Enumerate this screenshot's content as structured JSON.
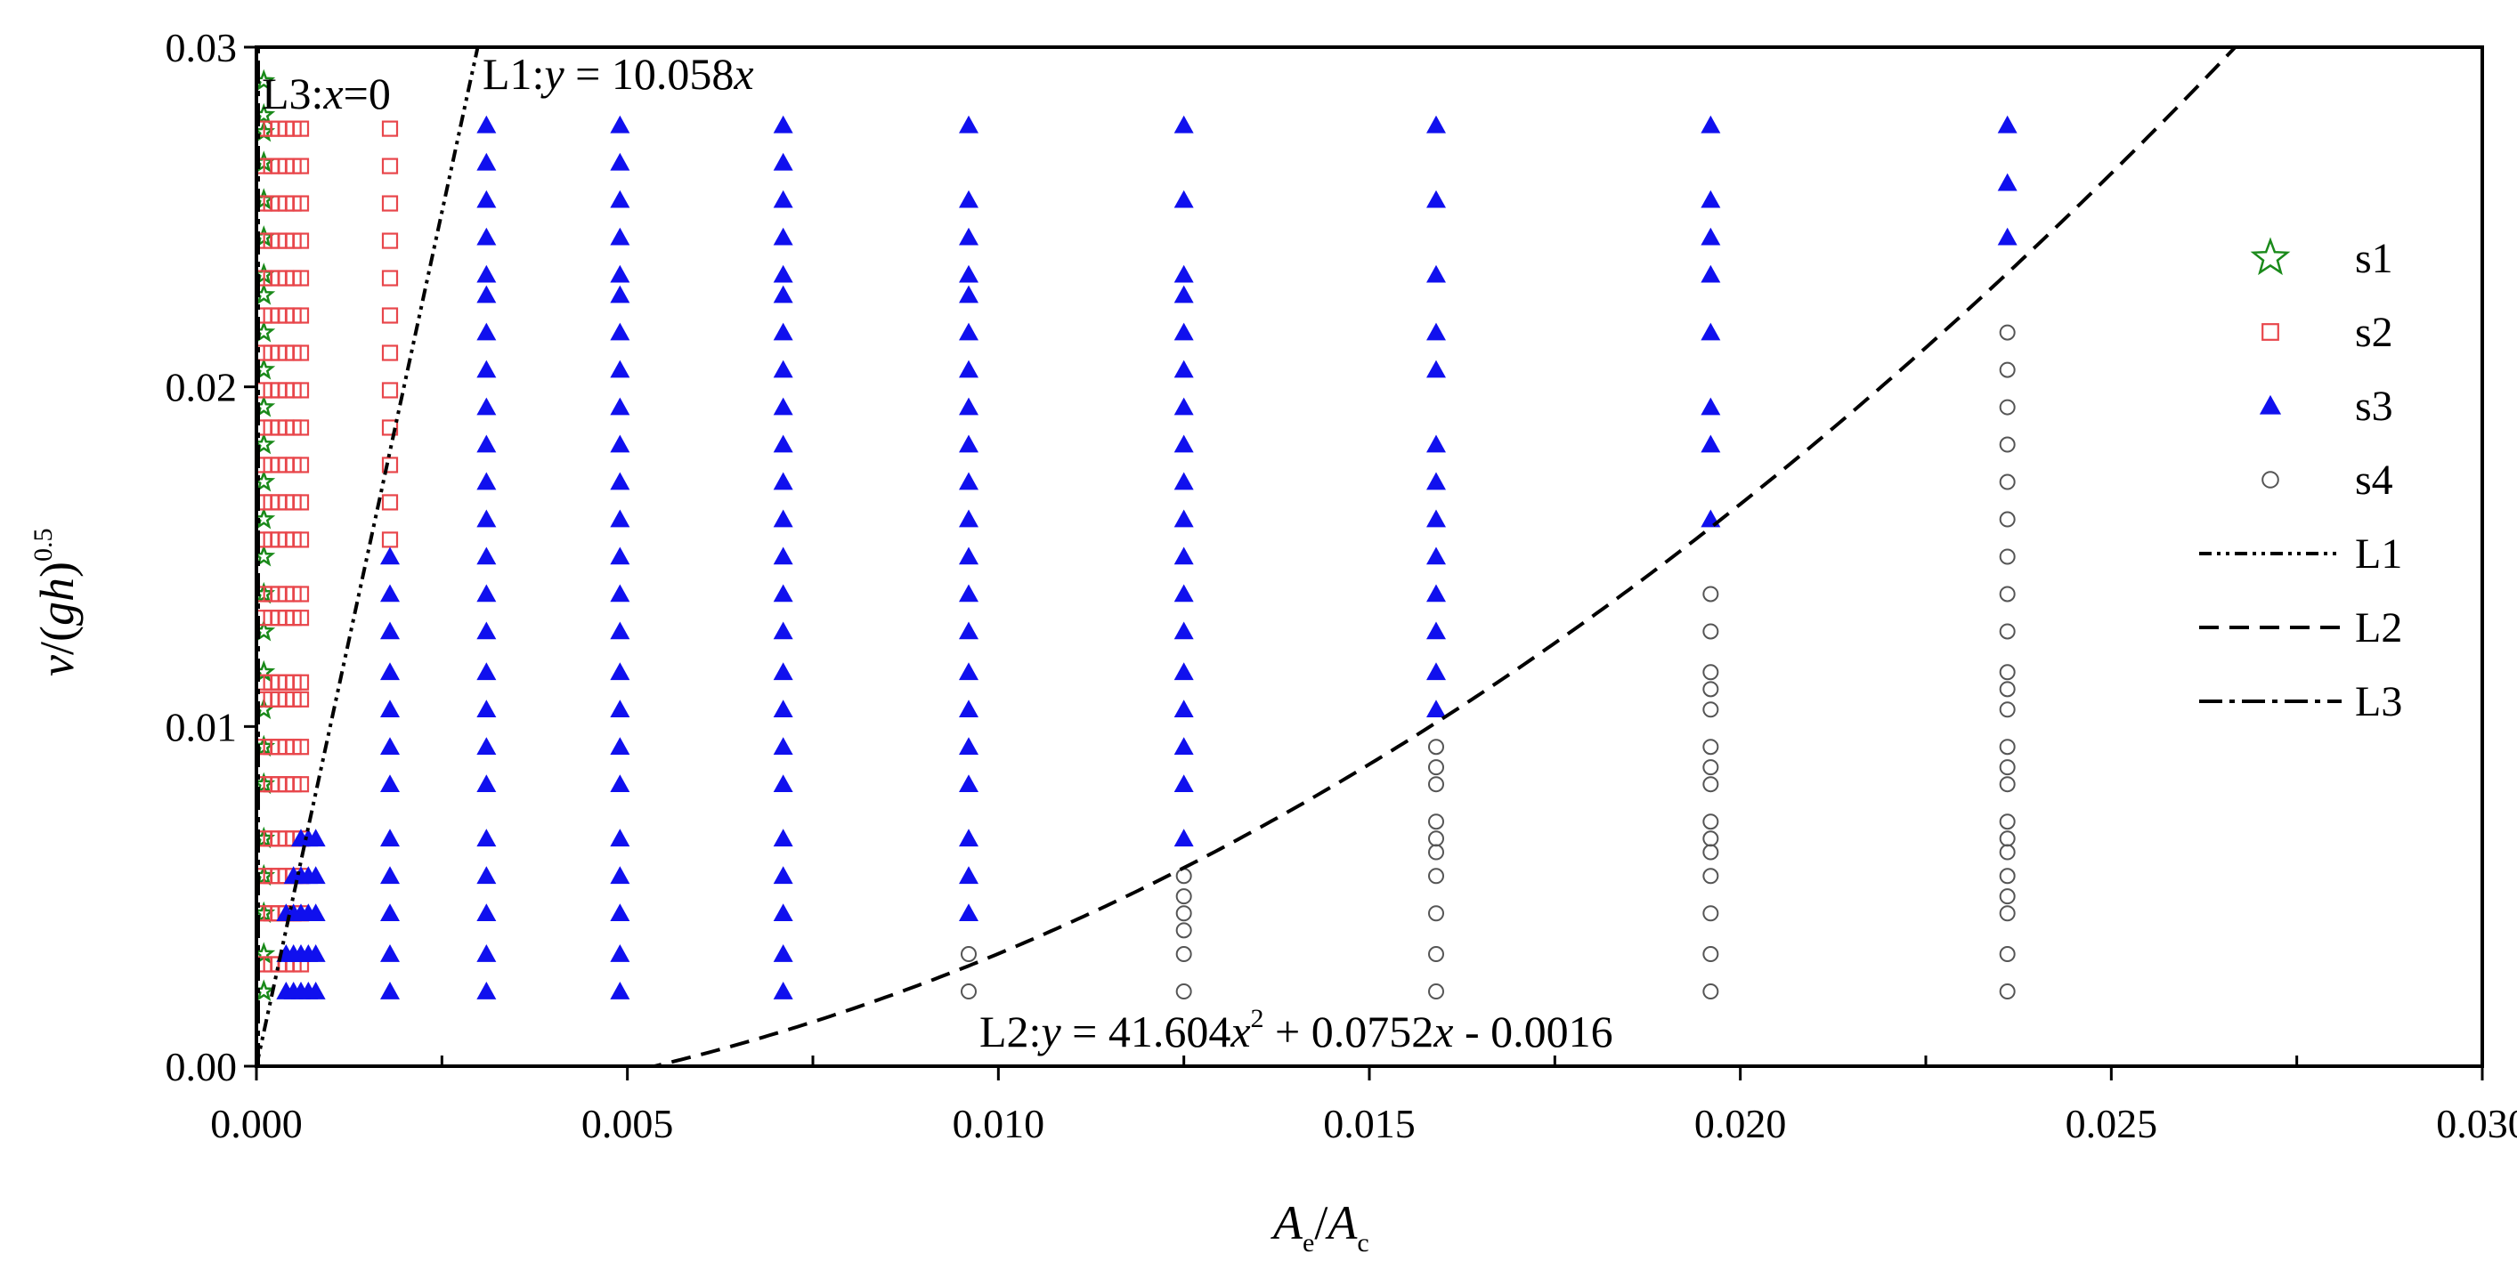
{
  "chart_data": {
    "type": "scatter",
    "title": "",
    "xlabel": "A_e/A_c",
    "ylabel": "v/(gh)^0.5",
    "xlim": [
      0.0,
      0.03
    ],
    "ylim": [
      0.0,
      0.03
    ],
    "x_ticks": [
      "0.000",
      "0.005",
      "0.010",
      "0.015",
      "0.020",
      "0.025",
      "0.030"
    ],
    "y_ticks": [
      "0.00",
      "0.01",
      "0.02",
      "0.03"
    ],
    "legend_position": "right",
    "series": [
      {
        "name": "s1",
        "marker": "star",
        "color": "#1a8a1a",
        "x": [
          0.0001,
          0.0001,
          0.0001,
          0.0001,
          0.0001,
          0.0001,
          0.0001,
          0.0001,
          0.0001,
          0.0001,
          0.0001,
          0.0001,
          0.0001,
          0.0001,
          0.0001,
          0.0001,
          0.0001,
          0.0001,
          0.0001,
          0.0001,
          0.0001,
          0.0001,
          0.0001,
          0.0001,
          0.0001,
          0.0001
        ],
        "y": [
          0.0022,
          0.0033,
          0.0045,
          0.0056,
          0.0067,
          0.0083,
          0.0094,
          0.0105,
          0.0116,
          0.0128,
          0.0139,
          0.015,
          0.0161,
          0.0172,
          0.0183,
          0.0194,
          0.0205,
          0.0216,
          0.0227,
          0.0233,
          0.0244,
          0.0255,
          0.0266,
          0.0275,
          0.028,
          0.029
        ]
      },
      {
        "name": "s2",
        "marker": "square",
        "color": "#e8464b",
        "x": [
          0.0001,
          0.0002,
          0.0003,
          0.0004,
          0.0005,
          0.0006,
          0.0001,
          0.0002,
          0.0003,
          0.0004,
          0.0005,
          0.0006,
          0.0001,
          0.0002,
          0.0003,
          0.0004,
          0.0005,
          0.0006,
          0.0001,
          0.0002,
          0.0003,
          0.0004,
          0.0005,
          0.0006,
          0.0001,
          0.0002,
          0.0003,
          0.0004,
          0.0005,
          0.0006,
          0.0001,
          0.0002,
          0.0003,
          0.0004,
          0.0005,
          0.0006,
          0.0001,
          0.0002,
          0.0003,
          0.0004,
          0.0005,
          0.0006,
          0.0001,
          0.0002,
          0.0003,
          0.0004,
          0.0005,
          0.0006,
          0.0001,
          0.0002,
          0.0003,
          0.0004,
          0.0005,
          0.0006,
          0.0001,
          0.0002,
          0.0003,
          0.0004,
          0.0005,
          0.0006,
          0.0001,
          0.0002,
          0.0003,
          0.0004,
          0.0005,
          0.0006,
          0.0001,
          0.0002,
          0.0003,
          0.0004,
          0.0005,
          0.0006,
          0.0001,
          0.0002,
          0.0003,
          0.0004,
          0.0005,
          0.0006,
          0.0001,
          0.0002,
          0.0003,
          0.0004,
          0.0005,
          0.0006,
          0.0001,
          0.0002,
          0.0003,
          0.0004,
          0.0005,
          0.0006,
          0.0001,
          0.0002,
          0.0003,
          0.0004,
          0.0005,
          0.0006,
          0.0001,
          0.0002,
          0.0003,
          0.0004,
          0.0005,
          0.0006,
          0.0001,
          0.0002,
          0.0003,
          0.0004,
          0.0005,
          0.0006,
          0.0001,
          0.0002,
          0.0003,
          0.0004,
          0.0005,
          0.0006,
          0.0001,
          0.0002,
          0.0003,
          0.0004,
          0.0005,
          0.0006,
          0.0001,
          0.0002,
          0.0003,
          0.0004,
          0.0005,
          0.0006,
          0.0001,
          0.0002,
          0.0003,
          0.0004,
          0.0005,
          0.0006,
          0.0018,
          0.0018,
          0.0018,
          0.0018,
          0.0018,
          0.0018,
          0.0018,
          0.0018,
          0.0018,
          0.0018,
          0.0018,
          0.0018
        ],
        "y": [
          0.003,
          0.003,
          0.003,
          0.003,
          0.003,
          0.003,
          0.0045,
          0.0045,
          0.0045,
          0.0045,
          0.0045,
          0.0045,
          0.0056,
          0.0056,
          0.0056,
          0.0056,
          0.0056,
          0.0056,
          0.0067,
          0.0067,
          0.0067,
          0.0067,
          0.0067,
          0.0067,
          0.0083,
          0.0083,
          0.0083,
          0.0083,
          0.0083,
          0.0083,
          0.0094,
          0.0094,
          0.0094,
          0.0094,
          0.0094,
          0.0094,
          0.0108,
          0.0108,
          0.0108,
          0.0108,
          0.0108,
          0.0108,
          0.0113,
          0.0113,
          0.0113,
          0.0113,
          0.0113,
          0.0113,
          0.0132,
          0.0132,
          0.0132,
          0.0132,
          0.0132,
          0.0132,
          0.0139,
          0.0139,
          0.0139,
          0.0139,
          0.0139,
          0.0139,
          0.0155,
          0.0155,
          0.0155,
          0.0155,
          0.0155,
          0.0155,
          0.0166,
          0.0166,
          0.0166,
          0.0166,
          0.0166,
          0.0166,
          0.0177,
          0.0177,
          0.0177,
          0.0177,
          0.0177,
          0.0177,
          0.0188,
          0.0188,
          0.0188,
          0.0188,
          0.0188,
          0.0188,
          0.0199,
          0.0199,
          0.0199,
          0.0199,
          0.0199,
          0.0199,
          0.021,
          0.021,
          0.021,
          0.021,
          0.021,
          0.021,
          0.0221,
          0.0221,
          0.0221,
          0.0221,
          0.0221,
          0.0221,
          0.0232,
          0.0232,
          0.0232,
          0.0232,
          0.0232,
          0.0232,
          0.0243,
          0.0243,
          0.0243,
          0.0243,
          0.0243,
          0.0243,
          0.0254,
          0.0254,
          0.0254,
          0.0254,
          0.0254,
          0.0254,
          0.0265,
          0.0265,
          0.0265,
          0.0265,
          0.0265,
          0.0265,
          0.0276,
          0.0276,
          0.0276,
          0.0276,
          0.0276,
          0.0276,
          0.0166,
          0.0177,
          0.0188,
          0.0199,
          0.021,
          0.0221,
          0.0232,
          0.0243,
          0.0254,
          0.0265,
          0.0276,
          0.0155
        ]
      },
      {
        "name": "s3",
        "marker": "triangle",
        "color": "#1010ee",
        "x": [
          0.0004,
          0.0005,
          0.0006,
          0.0007,
          0.0008,
          0.0004,
          0.0005,
          0.0006,
          0.0007,
          0.0008,
          0.0004,
          0.0005,
          0.0006,
          0.0007,
          0.0008,
          0.0005,
          0.0006,
          0.0007,
          0.0008,
          0.0006,
          0.0007,
          0.0008,
          0.0018,
          0.0018,
          0.0018,
          0.0018,
          0.0018,
          0.0018,
          0.0018,
          0.0018,
          0.0018,
          0.0018,
          0.0018,
          0.0018,
          0.0031,
          0.0031,
          0.0031,
          0.0031,
          0.0031,
          0.0031,
          0.0031,
          0.0031,
          0.0031,
          0.0031,
          0.0031,
          0.0031,
          0.0031,
          0.0031,
          0.0031,
          0.0031,
          0.0031,
          0.0031,
          0.0031,
          0.0031,
          0.0031,
          0.0031,
          0.0031,
          0.0031,
          0.0049,
          0.0049,
          0.0049,
          0.0049,
          0.0049,
          0.0049,
          0.0049,
          0.0049,
          0.0049,
          0.0049,
          0.0049,
          0.0049,
          0.0049,
          0.0049,
          0.0049,
          0.0049,
          0.0049,
          0.0049,
          0.0049,
          0.0049,
          0.0049,
          0.0049,
          0.0049,
          0.0049,
          0.0071,
          0.0071,
          0.0071,
          0.0071,
          0.0071,
          0.0071,
          0.0071,
          0.0071,
          0.0071,
          0.0071,
          0.0071,
          0.0071,
          0.0071,
          0.0071,
          0.0071,
          0.0071,
          0.0071,
          0.0071,
          0.0071,
          0.0071,
          0.0071,
          0.0071,
          0.0071,
          0.0071,
          0.0096,
          0.0096,
          0.0096,
          0.0096,
          0.0096,
          0.0096,
          0.0096,
          0.0096,
          0.0096,
          0.0096,
          0.0096,
          0.0096,
          0.0096,
          0.0096,
          0.0096,
          0.0096,
          0.0096,
          0.0096,
          0.0096,
          0.0096,
          0.0096,
          0.0125,
          0.0125,
          0.0125,
          0.0125,
          0.0125,
          0.0125,
          0.0125,
          0.0125,
          0.0125,
          0.0125,
          0.0125,
          0.0125,
          0.0125,
          0.0125,
          0.0125,
          0.0125,
          0.0125,
          0.0125,
          0.0159,
          0.0159,
          0.0159,
          0.0159,
          0.0159,
          0.0159,
          0.0159,
          0.0159,
          0.0159,
          0.0159,
          0.0159,
          0.0159,
          0.0159,
          0.0196,
          0.0196,
          0.0196,
          0.0196,
          0.0196,
          0.0196,
          0.0196,
          0.0196,
          0.0236,
          0.0236,
          0.0236
        ],
        "y": [
          0.0022,
          0.0022,
          0.0022,
          0.0022,
          0.0022,
          0.0033,
          0.0033,
          0.0033,
          0.0033,
          0.0033,
          0.0045,
          0.0045,
          0.0045,
          0.0045,
          0.0045,
          0.0056,
          0.0056,
          0.0056,
          0.0056,
          0.0067,
          0.0067,
          0.0067,
          0.0022,
          0.0033,
          0.0045,
          0.0056,
          0.0067,
          0.0083,
          0.0094,
          0.0105,
          0.0116,
          0.0128,
          0.0139,
          0.015,
          0.0022,
          0.0033,
          0.0045,
          0.0056,
          0.0067,
          0.0083,
          0.0094,
          0.0105,
          0.0116,
          0.0128,
          0.0139,
          0.015,
          0.0161,
          0.0172,
          0.0183,
          0.0194,
          0.0205,
          0.0216,
          0.0227,
          0.0233,
          0.0244,
          0.0255,
          0.0266,
          0.0277,
          0.0022,
          0.0033,
          0.0045,
          0.0056,
          0.0067,
          0.0083,
          0.0094,
          0.0105,
          0.0116,
          0.0128,
          0.0139,
          0.015,
          0.0161,
          0.0172,
          0.0183,
          0.0194,
          0.0205,
          0.0216,
          0.0227,
          0.0233,
          0.0244,
          0.0255,
          0.0266,
          0.0277,
          0.0022,
          0.0033,
          0.0045,
          0.0056,
          0.0067,
          0.0083,
          0.0094,
          0.0105,
          0.0116,
          0.0128,
          0.0139,
          0.015,
          0.0161,
          0.0172,
          0.0183,
          0.0194,
          0.0205,
          0.0216,
          0.0227,
          0.0233,
          0.0244,
          0.0255,
          0.0266,
          0.0277,
          0.0045,
          0.0056,
          0.0067,
          0.0083,
          0.0094,
          0.0105,
          0.0116,
          0.0128,
          0.0139,
          0.015,
          0.0161,
          0.0172,
          0.0183,
          0.0194,
          0.0205,
          0.0216,
          0.0227,
          0.0233,
          0.0244,
          0.0255,
          0.0277,
          0.0067,
          0.0083,
          0.0094,
          0.0105,
          0.0116,
          0.0128,
          0.0139,
          0.015,
          0.0161,
          0.0172,
          0.0183,
          0.0194,
          0.0205,
          0.0216,
          0.0227,
          0.0233,
          0.0255,
          0.0277,
          0.0105,
          0.0116,
          0.0128,
          0.0139,
          0.015,
          0.0161,
          0.0172,
          0.0183,
          0.0205,
          0.0216,
          0.0233,
          0.0255,
          0.0277,
          0.0161,
          0.0183,
          0.0194,
          0.0216,
          0.0233,
          0.0244,
          0.0255,
          0.0277,
          0.0244,
          0.026,
          0.0277
        ]
      },
      {
        "name": "s4",
        "marker": "circle",
        "color": "#555555",
        "x": [
          0.0096,
          0.0096,
          0.0125,
          0.0125,
          0.0125,
          0.0125,
          0.0125,
          0.0125,
          0.0159,
          0.0159,
          0.0159,
          0.0159,
          0.0159,
          0.0159,
          0.0159,
          0.0159,
          0.0159,
          0.0159,
          0.0196,
          0.0196,
          0.0196,
          0.0196,
          0.0196,
          0.0196,
          0.0196,
          0.0196,
          0.0196,
          0.0196,
          0.0196,
          0.0196,
          0.0196,
          0.0196,
          0.0196,
          0.0236,
          0.0236,
          0.0236,
          0.0236,
          0.0236,
          0.0236,
          0.0236,
          0.0236,
          0.0236,
          0.0236,
          0.0236,
          0.0236,
          0.0236,
          0.0236,
          0.0236,
          0.0236,
          0.0236,
          0.0236,
          0.0236,
          0.0236,
          0.0236,
          0.0236,
          0.0236
        ],
        "y": [
          0.0022,
          0.0033,
          0.0022,
          0.0033,
          0.004,
          0.0045,
          0.005,
          0.0056,
          0.0022,
          0.0033,
          0.0045,
          0.0056,
          0.0063,
          0.0067,
          0.0072,
          0.0083,
          0.0088,
          0.0094,
          0.0022,
          0.0033,
          0.0045,
          0.0056,
          0.0063,
          0.0067,
          0.0072,
          0.0083,
          0.0088,
          0.0094,
          0.0105,
          0.0111,
          0.0116,
          0.0128,
          0.0139,
          0.0022,
          0.0033,
          0.0045,
          0.005,
          0.0056,
          0.0063,
          0.0067,
          0.0072,
          0.0083,
          0.0088,
          0.0094,
          0.0105,
          0.0111,
          0.0116,
          0.0128,
          0.0139,
          0.015,
          0.0161,
          0.0172,
          0.0183,
          0.0194,
          0.0205,
          0.0216
        ]
      }
    ],
    "lines": [
      {
        "name": "L1",
        "dash": "dash-dot-dot",
        "equation": "y = 10.058x",
        "slope": 10.058,
        "intercept": 0
      },
      {
        "name": "L2",
        "dash": "dash",
        "equation": "y = 41.604x^2 + 0.0752x - 0.0016",
        "a": 41.604,
        "b": 0.0752,
        "c": -0.0016
      },
      {
        "name": "L3",
        "dash": "dash-dot",
        "equation": "x=0",
        "x": 0
      }
    ],
    "annotations": {
      "l3_prefix": "L3:",
      "l3_var": "x",
      "l3_rest": "=0",
      "l1_prefix": "L1:",
      "l1_var": "y",
      "l1_rest": " = 10.058",
      "l1_var2": "x",
      "l2_prefix": "L2:",
      "l2_var": "y",
      "l2_mid1": " = 41.604",
      "l2_var2": "x",
      "l2_sup": "2",
      "l2_mid2": " + 0.0752",
      "l2_var3": "x",
      "l2_end": " - 0.0016"
    },
    "axis_text": {
      "ylabel_v": "v",
      "ylabel_rest": "/(",
      "ylabel_gh": "gh",
      "ylabel_close": ")",
      "ylabel_sup": "0.5",
      "xlabel_A1": "A",
      "xlabel_sub1": "e",
      "xlabel_slash": "/",
      "xlabel_A2": "A",
      "xlabel_sub2": "c"
    }
  }
}
